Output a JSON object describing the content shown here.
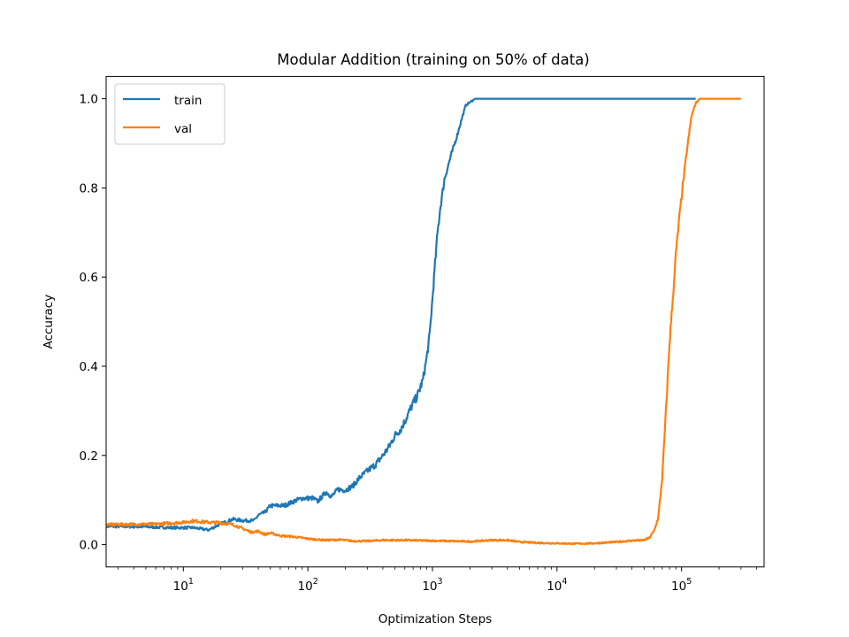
{
  "chart_data": {
    "type": "line",
    "title": "Modular Addition (training on 50% of data)",
    "xlabel": "Optimization Steps",
    "ylabel": "Accuracy",
    "xscale": "log",
    "xlim": [
      2.4,
      460000
    ],
    "ylim": [
      -0.05,
      1.05
    ],
    "x_major_ticks": [
      {
        "value": 10,
        "base": "10",
        "exp": "1"
      },
      {
        "value": 100,
        "base": "10",
        "exp": "2"
      },
      {
        "value": 1000,
        "base": "10",
        "exp": "3"
      },
      {
        "value": 10000,
        "base": "10",
        "exp": "4"
      },
      {
        "value": 100000,
        "base": "10",
        "exp": "5"
      }
    ],
    "y_ticks": [
      {
        "value": 0.0,
        "label": "0.0"
      },
      {
        "value": 0.2,
        "label": "0.2"
      },
      {
        "value": 0.4,
        "label": "0.4"
      },
      {
        "value": 0.6,
        "label": "0.6"
      },
      {
        "value": 0.8,
        "label": "0.8"
      },
      {
        "value": 1.0,
        "label": "1.0"
      }
    ],
    "grid": false,
    "legend_position": "upper-left",
    "series": [
      {
        "name": "train",
        "color": "#1f77b4",
        "points": [
          [
            2.4,
            0.041
          ],
          [
            5,
            0.04
          ],
          [
            8,
            0.038
          ],
          [
            12,
            0.038
          ],
          [
            16,
            0.033
          ],
          [
            20,
            0.047
          ],
          [
            25,
            0.057
          ],
          [
            30,
            0.054
          ],
          [
            37,
            0.054
          ],
          [
            40,
            0.066
          ],
          [
            45,
            0.072
          ],
          [
            50,
            0.087
          ],
          [
            65,
            0.088
          ],
          [
            80,
            0.099
          ],
          [
            90,
            0.104
          ],
          [
            110,
            0.104
          ],
          [
            120,
            0.097
          ],
          [
            140,
            0.118
          ],
          [
            155,
            0.108
          ],
          [
            175,
            0.124
          ],
          [
            200,
            0.122
          ],
          [
            230,
            0.132
          ],
          [
            260,
            0.15
          ],
          [
            300,
            0.165
          ],
          [
            350,
            0.18
          ],
          [
            400,
            0.2
          ],
          [
            450,
            0.22
          ],
          [
            500,
            0.245
          ],
          [
            560,
            0.26
          ],
          [
            620,
            0.285
          ],
          [
            680,
            0.31
          ],
          [
            760,
            0.335
          ],
          [
            840,
            0.37
          ],
          [
            900,
            0.42
          ],
          [
            950,
            0.47
          ],
          [
            1000,
            0.55
          ],
          [
            1050,
            0.63
          ],
          [
            1100,
            0.7
          ],
          [
            1150,
            0.75
          ],
          [
            1250,
            0.82
          ],
          [
            1400,
            0.87
          ],
          [
            1550,
            0.91
          ],
          [
            1700,
            0.95
          ],
          [
            1850,
            0.985
          ],
          [
            2000,
            0.992
          ],
          [
            2200,
            1.0
          ],
          [
            10000,
            1.0
          ],
          [
            100000,
            1.0
          ],
          [
            130000,
            1.0
          ]
        ]
      },
      {
        "name": "val",
        "color": "#ff7f0e",
        "points": [
          [
            2.4,
            0.045
          ],
          [
            6,
            0.046
          ],
          [
            10,
            0.05
          ],
          [
            12,
            0.053
          ],
          [
            16,
            0.05
          ],
          [
            20,
            0.049
          ],
          [
            25,
            0.045
          ],
          [
            30,
            0.036
          ],
          [
            35,
            0.028
          ],
          [
            40,
            0.03
          ],
          [
            45,
            0.023
          ],
          [
            50,
            0.026
          ],
          [
            60,
            0.02
          ],
          [
            75,
            0.018
          ],
          [
            90,
            0.015
          ],
          [
            110,
            0.012
          ],
          [
            140,
            0.01
          ],
          [
            180,
            0.011
          ],
          [
            230,
            0.008
          ],
          [
            300,
            0.008
          ],
          [
            400,
            0.01
          ],
          [
            600,
            0.01
          ],
          [
            900,
            0.009
          ],
          [
            1300,
            0.008
          ],
          [
            2000,
            0.007
          ],
          [
            3000,
            0.01
          ],
          [
            4000,
            0.01
          ],
          [
            5000,
            0.006
          ],
          [
            7000,
            0.004
          ],
          [
            10000,
            0.003
          ],
          [
            14000,
            0.002
          ],
          [
            20000,
            0.003
          ],
          [
            30000,
            0.006
          ],
          [
            40000,
            0.009
          ],
          [
            50000,
            0.01
          ],
          [
            55000,
            0.015
          ],
          [
            60000,
            0.03
          ],
          [
            65000,
            0.06
          ],
          [
            70000,
            0.15
          ],
          [
            75000,
            0.3
          ],
          [
            80000,
            0.45
          ],
          [
            85000,
            0.55
          ],
          [
            90000,
            0.65
          ],
          [
            95000,
            0.72
          ],
          [
            100000,
            0.78
          ],
          [
            110000,
            0.88
          ],
          [
            120000,
            0.96
          ],
          [
            130000,
            0.99
          ],
          [
            140000,
            1.0
          ],
          [
            200000,
            1.0
          ],
          [
            300000,
            1.0
          ]
        ]
      }
    ]
  }
}
